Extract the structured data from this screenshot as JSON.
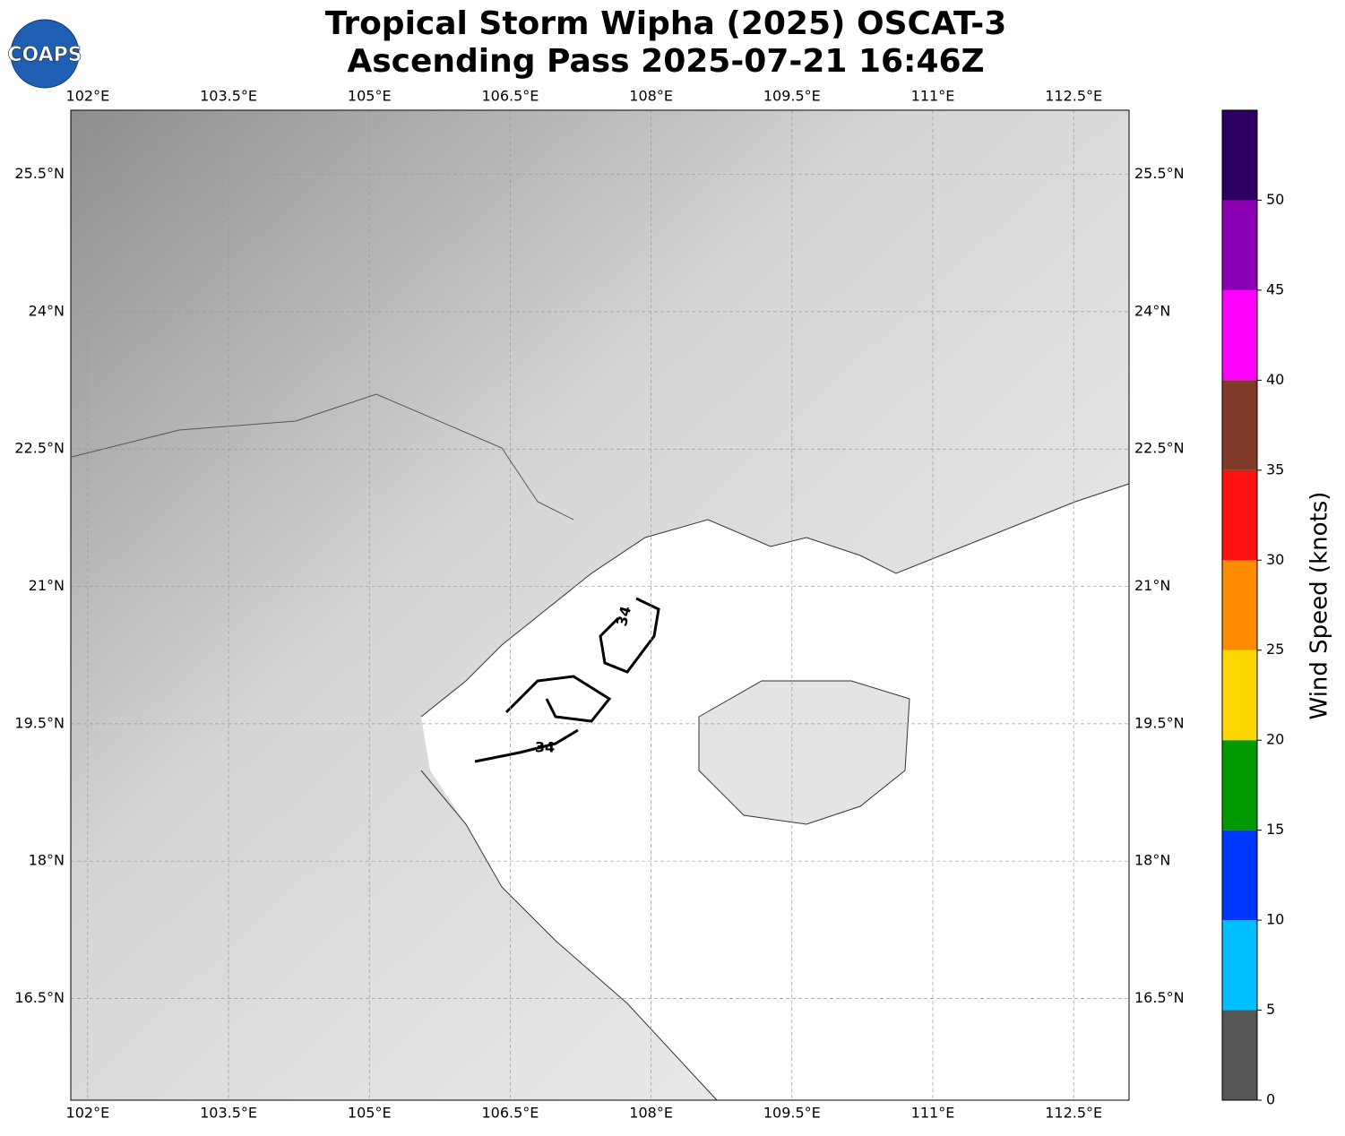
{
  "title": [
    "Tropical Storm Wipha (2025) OSCAT-3",
    "Ascending Pass 2025-07-21 16:46Z"
  ],
  "logo": "COAPS",
  "map": {
    "lonlim": [
      101.82,
      113.09
    ],
    "latlim": [
      15.39,
      26.2
    ],
    "lon_ticks": [
      {
        "value": 102,
        "label": "102°E"
      },
      {
        "value": 103.5,
        "label": "103.5°E"
      },
      {
        "value": 105,
        "label": "105°E"
      },
      {
        "value": 106.5,
        "label": "106.5°E"
      },
      {
        "value": 108,
        "label": "108°E"
      },
      {
        "value": 109.5,
        "label": "109.5°E"
      },
      {
        "value": 111,
        "label": "111°E"
      },
      {
        "value": 112.5,
        "label": "112.5°E"
      }
    ],
    "lat_ticks": [
      {
        "value": 16.5,
        "label": "16.5°N"
      },
      {
        "value": 18,
        "label": "18°N"
      },
      {
        "value": 19.5,
        "label": "19.5°N"
      },
      {
        "value": 21,
        "label": "21°N"
      },
      {
        "value": 22.5,
        "label": "22.5°N"
      },
      {
        "value": 24,
        "label": "24°N"
      },
      {
        "value": 25.5,
        "label": "25.5°N"
      }
    ],
    "contour_labels": [
      "34",
      "34"
    ]
  },
  "colorbar": {
    "label": "Wind Speed (knots)",
    "lim": [
      0,
      55
    ],
    "ticks": [
      0,
      5,
      10,
      15,
      20,
      25,
      30,
      35,
      40,
      45,
      50
    ],
    "colors": [
      "#555555",
      "#00bfff",
      "#0037ff",
      "#009900",
      "#ffd700",
      "#ff8c00",
      "#ff1010",
      "#803a28",
      "#ff00ff",
      "#8b00b4",
      "#2d0060"
    ]
  }
}
